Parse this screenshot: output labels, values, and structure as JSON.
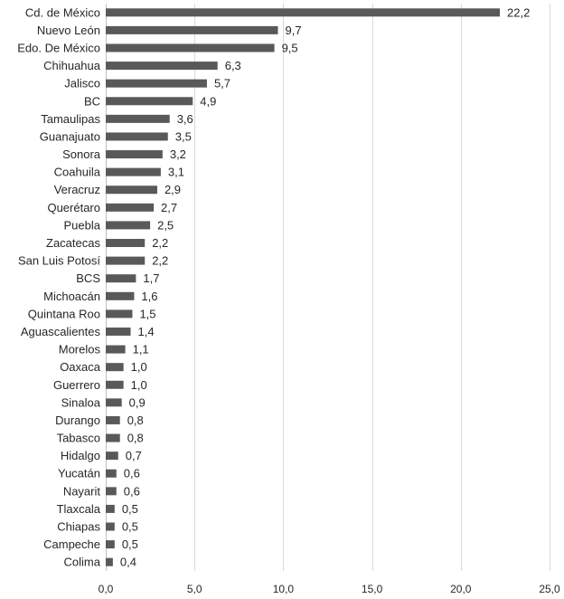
{
  "chart_data": {
    "type": "bar",
    "orientation": "horizontal",
    "title": "",
    "xlabel": "",
    "ylabel": "",
    "categories": [
      "Cd. de México",
      "Nuevo León",
      "Edo. De México",
      "Chihuahua",
      "Jalisco",
      "BC",
      "Tamaulipas",
      "Guanajuato",
      "Sonora",
      "Coahuila",
      "Veracruz",
      "Querétaro",
      "Puebla",
      "Zacatecas",
      "San Luis Potosí",
      "BCS",
      "Michoacán",
      "Quintana Roo",
      "Aguascalientes",
      "Morelos",
      "Oaxaca",
      "Guerrero",
      "Sinaloa",
      "Durango",
      "Tabasco",
      "Hidalgo",
      "Yucatán",
      "Nayarit",
      "Tlaxcala",
      "Chiapas",
      "Campeche",
      "Colima"
    ],
    "values": [
      22.2,
      9.7,
      9.5,
      6.3,
      5.7,
      4.9,
      3.6,
      3.5,
      3.2,
      3.1,
      2.9,
      2.7,
      2.5,
      2.2,
      2.2,
      1.7,
      1.6,
      1.5,
      1.4,
      1.1,
      1.0,
      1.0,
      0.9,
      0.8,
      0.8,
      0.7,
      0.6,
      0.6,
      0.5,
      0.5,
      0.5,
      0.4
    ],
    "value_labels": [
      "22,2",
      "9,7",
      "9,5",
      "6,3",
      "5,7",
      "4,9",
      "3,6",
      "3,5",
      "3,2",
      "3,1",
      "2,9",
      "2,7",
      "2,5",
      "2,2",
      "2,2",
      "1,7",
      "1,6",
      "1,5",
      "1,4",
      "1,1",
      "1,0",
      "1,0",
      "0,9",
      "0,8",
      "0,8",
      "0,7",
      "0,6",
      "0,6",
      "0,5",
      "0,5",
      "0,5",
      "0,4"
    ],
    "xlim": [
      0,
      25
    ],
    "xticks": [
      0,
      5,
      10,
      15,
      20,
      25
    ],
    "xtick_labels": [
      "0,0",
      "5,0",
      "10,0",
      "15,0",
      "20,0",
      "25,0"
    ],
    "grid": "vertical",
    "legend": "none",
    "bar_color": "#595959",
    "text_color": "#262626",
    "grid_color": "#d9d9d9"
  }
}
